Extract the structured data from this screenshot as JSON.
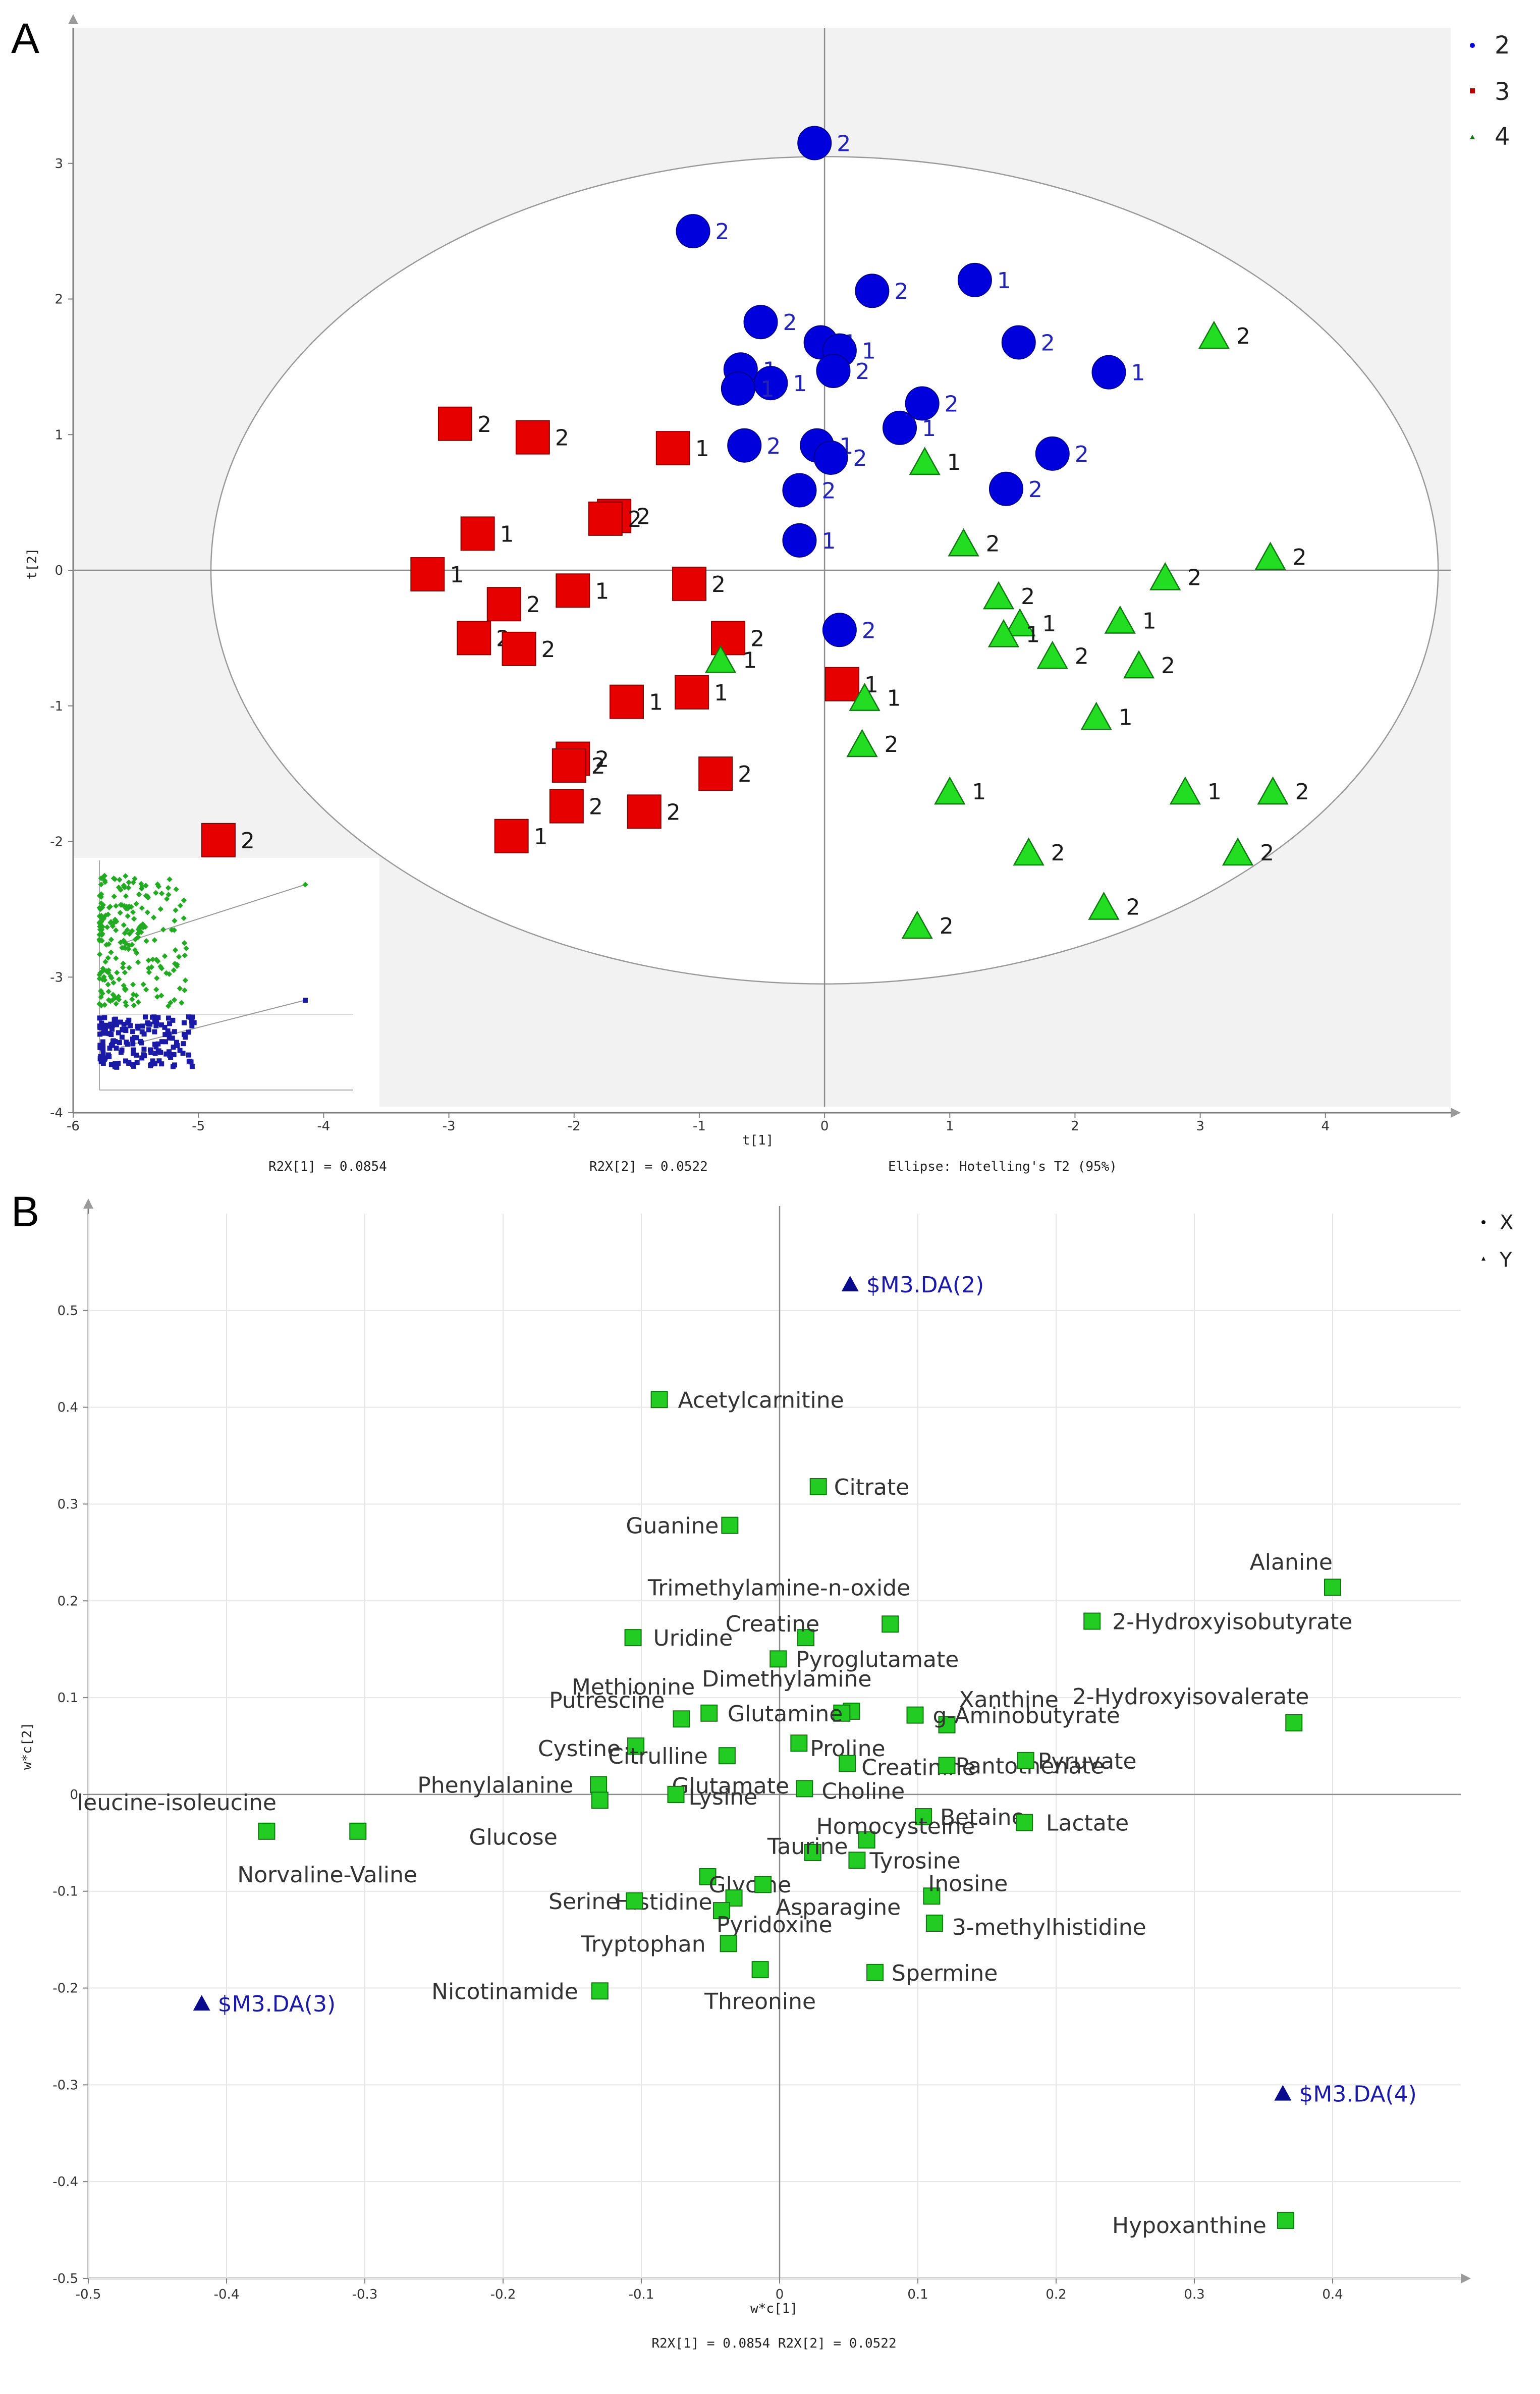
{
  "figure": {
    "panel_a_letter": "A",
    "panel_b_letter": "B"
  },
  "colors": {
    "group2": "#0000dd",
    "group3": "#e60000",
    "group4": "#22dd22",
    "x_var": "#22cc22",
    "y_var": "#0a0a8c",
    "ellipse": "#999999",
    "shade": "#f2f2f2"
  },
  "chart_data": [
    {
      "type": "scatter",
      "title": "",
      "xlabel": "t[1]",
      "ylabel": "t[2]",
      "xlim": [
        -6,
        5
      ],
      "ylim": [
        -4,
        4
      ],
      "xticks": [
        -6,
        -5,
        -4,
        -3,
        -2,
        -1,
        0,
        1,
        2,
        3,
        4
      ],
      "yticks": [
        3,
        2,
        1,
        0,
        -1,
        -2,
        -3,
        -4
      ],
      "footer": {
        "r2x1": "R2X[1] = 0.0854",
        "r2x2": "R2X[2] = 0.0522",
        "ellipse": "Ellipse: Hotelling's T2 (95%)"
      },
      "ellipse": {
        "center": [
          0,
          0
        ],
        "semi_axes": [
          4.9,
          3.05
        ]
      },
      "legend": [
        "2",
        "3",
        "4"
      ],
      "series": [
        {
          "name": "2",
          "marker": "circle",
          "points": [
            [
              -0.08,
              3.15,
              "2"
            ],
            [
              -1.05,
              2.5,
              "2"
            ],
            [
              0.38,
              2.06,
              "2"
            ],
            [
              1.2,
              2.14,
              "1"
            ],
            [
              -0.51,
              1.83,
              "2"
            ],
            [
              -0.03,
              1.68,
              "1"
            ],
            [
              0.12,
              1.62,
              "1"
            ],
            [
              1.55,
              1.68,
              "2"
            ],
            [
              -0.67,
              1.48,
              "1"
            ],
            [
              0.07,
              1.47,
              "2"
            ],
            [
              2.27,
              1.46,
              "1"
            ],
            [
              -0.43,
              1.38,
              "1"
            ],
            [
              -0.69,
              1.34,
              "1"
            ],
            [
              0.78,
              1.23,
              "2"
            ],
            [
              0.6,
              1.05,
              "1"
            ],
            [
              -0.64,
              0.92,
              "2"
            ],
            [
              -0.06,
              0.92,
              "1"
            ],
            [
              1.82,
              0.86,
              "2"
            ],
            [
              0.05,
              0.83,
              "2"
            ],
            [
              1.45,
              0.6,
              "2"
            ],
            [
              -0.2,
              0.59,
              "2"
            ],
            [
              -0.2,
              0.22,
              "1"
            ],
            [
              0.12,
              -0.44,
              "2"
            ]
          ]
        },
        {
          "name": "3",
          "marker": "square",
          "points": [
            [
              -2.95,
              1.08,
              "2"
            ],
            [
              -2.33,
              0.98,
              "2"
            ],
            [
              -1.21,
              0.9,
              "1"
            ],
            [
              -1.68,
              0.4,
              "2"
            ],
            [
              -1.75,
              0.38,
              "2"
            ],
            [
              -2.77,
              0.27,
              "1"
            ],
            [
              -3.17,
              -0.03,
              "1"
            ],
            [
              -1.08,
              -0.1,
              "2"
            ],
            [
              -2.01,
              -0.15,
              "1"
            ],
            [
              -2.56,
              -0.25,
              "2"
            ],
            [
              -2.8,
              -0.5,
              "2"
            ],
            [
              -0.77,
              -0.5,
              "2"
            ],
            [
              -2.44,
              -0.58,
              "2"
            ],
            [
              -1.06,
              -0.9,
              "1"
            ],
            [
              0.14,
              -0.84,
              "1"
            ],
            [
              -1.58,
              -0.97,
              "1"
            ],
            [
              -2.01,
              -1.39,
              "2"
            ],
            [
              -2.04,
              -1.44,
              "2"
            ],
            [
              -0.87,
              -1.5,
              "2"
            ],
            [
              -2.06,
              -1.74,
              "2"
            ],
            [
              -1.44,
              -1.78,
              "2"
            ],
            [
              -2.5,
              -1.96,
              "1"
            ],
            [
              -4.84,
              -1.99,
              "2"
            ]
          ]
        },
        {
          "name": "4",
          "marker": "triangle",
          "points": [
            [
              3.11,
              1.73,
              "2"
            ],
            [
              0.8,
              0.8,
              "1"
            ],
            [
              1.11,
              0.2,
              "2"
            ],
            [
              3.56,
              0.1,
              "2"
            ],
            [
              2.72,
              -0.05,
              "2"
            ],
            [
              1.39,
              -0.19,
              "2"
            ],
            [
              2.36,
              -0.37,
              "1"
            ],
            [
              1.56,
              -0.39,
              "1"
            ],
            [
              1.43,
              -0.47,
              "1"
            ],
            [
              1.82,
              -0.63,
              "2"
            ],
            [
              -0.83,
              -0.66,
              "1"
            ],
            [
              2.51,
              -0.7,
              "2"
            ],
            [
              0.32,
              -0.94,
              "1"
            ],
            [
              2.17,
              -1.08,
              "1"
            ],
            [
              0.3,
              -1.28,
              "2"
            ],
            [
              1.0,
              -1.63,
              "1"
            ],
            [
              2.88,
              -1.63,
              "1"
            ],
            [
              3.58,
              -1.63,
              "2"
            ],
            [
              1.63,
              -2.08,
              "2"
            ],
            [
              3.3,
              -2.08,
              "2"
            ],
            [
              2.23,
              -2.48,
              "2"
            ],
            [
              0.74,
              -2.62,
              "2"
            ]
          ]
        }
      ]
    },
    {
      "type": "scatter",
      "title": "",
      "xlabel": "w*c[1]",
      "ylabel": "w*c[2]",
      "xlim": [
        -0.5,
        0.5
      ],
      "ylim": [
        -0.5,
        0.6
      ],
      "xticks": [
        -0.5,
        -0.4,
        -0.3,
        -0.2,
        -0.1,
        0,
        0.1,
        0.2,
        0.3,
        0.4
      ],
      "yticks": [
        0.5,
        0.4,
        0.3,
        0.2,
        0.1,
        0,
        -0.1,
        -0.2,
        -0.3,
        -0.4,
        -0.5
      ],
      "footer": "R2X[1] = 0.0854 R2X[2] = 0.0522",
      "legend": [
        "X",
        "Y"
      ],
      "x_variables": [
        {
          "name": "Acetylcarnitine",
          "x": -0.087,
          "y": 0.408
        },
        {
          "name": "Citrate",
          "x": 0.028,
          "y": 0.318
        },
        {
          "name": "Guanine",
          "x": -0.036,
          "y": 0.278
        },
        {
          "name": "Alanine",
          "x": 0.4,
          "y": 0.214
        },
        {
          "name": "Trimethylamine-n-oxide",
          "x": 0.08,
          "y": 0.176
        },
        {
          "name": "2-Hydroxyisobutyrate",
          "x": 0.226,
          "y": 0.179
        },
        {
          "name": "Creatine",
          "x": 0.019,
          "y": 0.162
        },
        {
          "name": "Uridine",
          "x": -0.106,
          "y": 0.162
        },
        {
          "name": "Pyroglutamate",
          "x": -0.001,
          "y": 0.14
        },
        {
          "name": "Dimethylamine",
          "x": 0.052,
          "y": 0.086
        },
        {
          "name": "Methionine",
          "x": -0.051,
          "y": 0.084
        },
        {
          "name": "Putrescine",
          "x": -0.071,
          "y": 0.078
        },
        {
          "name": "Xanthine",
          "x": 0.121,
          "y": 0.072
        },
        {
          "name": "g-Aminobutyrate",
          "x": 0.098,
          "y": 0.082
        },
        {
          "name": "Glutamine",
          "x": 0.045,
          "y": 0.084
        },
        {
          "name": "2-Hydroxyisovalerate",
          "x": 0.372,
          "y": 0.074
        },
        {
          "name": "Cystine",
          "x": -0.104,
          "y": 0.05
        },
        {
          "name": "Citrulline",
          "x": -0.038,
          "y": 0.04
        },
        {
          "name": "Proline",
          "x": 0.014,
          "y": 0.053
        },
        {
          "name": "Creatinine",
          "x": 0.049,
          "y": 0.032
        },
        {
          "name": "Pantothenate",
          "x": 0.121,
          "y": 0.03
        },
        {
          "name": "Pyruvate",
          "x": 0.178,
          "y": 0.035
        },
        {
          "name": "Phenylalanine",
          "x": -0.131,
          "y": 0.01
        },
        {
          "name": "Glutamate",
          "x": -0.075,
          "y": 0.0
        },
        {
          "name": "Lysine",
          "x": -0.075,
          "y": 0.0
        },
        {
          "name": "Choline",
          "x": 0.018,
          "y": 0.006
        },
        {
          "name": "Glucose",
          "x": -0.13,
          "y": -0.006
        },
        {
          "name": "leucine-isoleucine",
          "x": -0.371,
          "y": -0.038
        },
        {
          "name": "Norvaline-Valine",
          "x": -0.305,
          "y": -0.038
        },
        {
          "name": "Betaine",
          "x": 0.104,
          "y": -0.023
        },
        {
          "name": "Lactate",
          "x": 0.177,
          "y": -0.029
        },
        {
          "name": "Homocysteine",
          "x": 0.063,
          "y": -0.047
        },
        {
          "name": "Taurine",
          "x": 0.024,
          "y": -0.06
        },
        {
          "name": "Tyrosine",
          "x": 0.056,
          "y": -0.068
        },
        {
          "name": "Inosine",
          "x": 0.11,
          "y": -0.105
        },
        {
          "name": "Glycine",
          "x": -0.052,
          "y": -0.085
        },
        {
          "name": "Histidine",
          "x": -0.033,
          "y": -0.107
        },
        {
          "name": "Asparagine",
          "x": -0.012,
          "y": -0.093
        },
        {
          "name": "Serine",
          "x": -0.105,
          "y": -0.11
        },
        {
          "name": "Pyridoxine",
          "x": -0.042,
          "y": -0.12
        },
        {
          "name": "3-methylhistidine",
          "x": 0.112,
          "y": -0.133
        },
        {
          "name": "Tryptophan",
          "x": -0.037,
          "y": -0.154
        },
        {
          "name": "Spermine",
          "x": 0.069,
          "y": -0.184
        },
        {
          "name": "Threonine",
          "x": -0.014,
          "y": -0.181
        },
        {
          "name": "Nicotinamide",
          "x": -0.13,
          "y": -0.203
        },
        {
          "name": "Hypoxanthine",
          "x": 0.366,
          "y": -0.44
        }
      ],
      "y_variables": [
        {
          "name": "$M3.DA(2)",
          "x": 0.051,
          "y": 0.527
        },
        {
          "name": "$M3.DA(3)",
          "x": -0.418,
          "y": -0.216
        },
        {
          "name": "$M3.DA(4)",
          "x": 0.364,
          "y": -0.309
        }
      ]
    }
  ]
}
